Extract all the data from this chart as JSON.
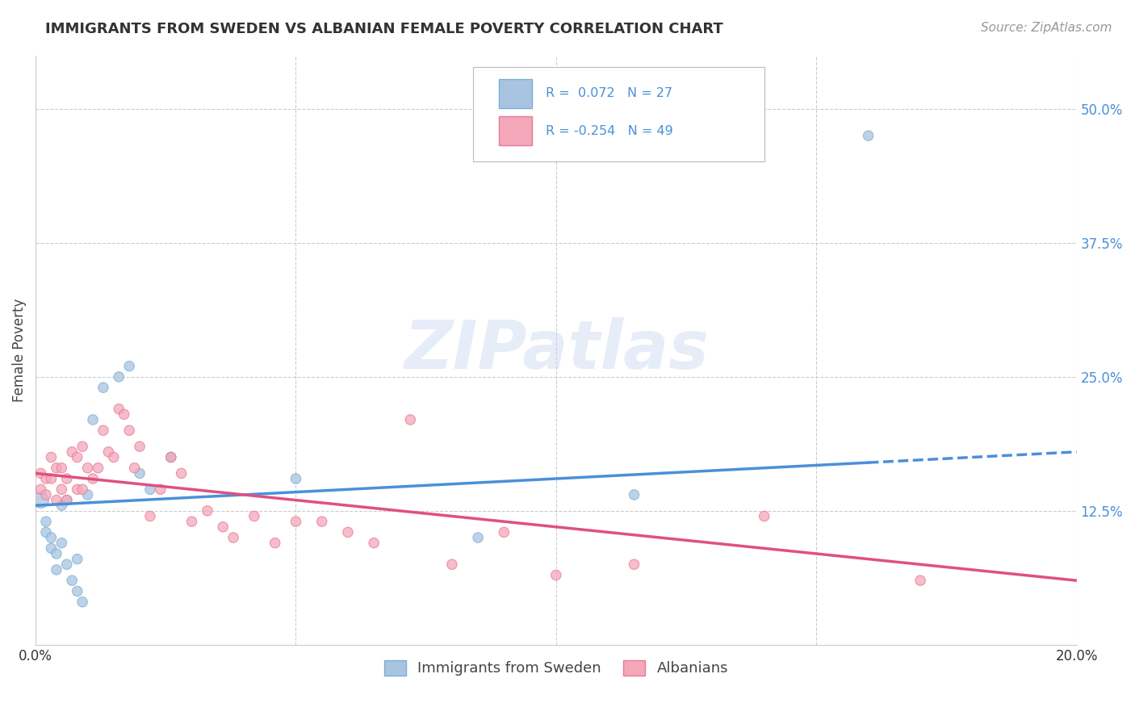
{
  "title": "IMMIGRANTS FROM SWEDEN VS ALBANIAN FEMALE POVERTY CORRELATION CHART",
  "source": "Source: ZipAtlas.com",
  "ylabel": "Female Poverty",
  "xlim": [
    0.0,
    0.2
  ],
  "ylim": [
    0.0,
    0.55
  ],
  "right_yticks": [
    0.0,
    0.125,
    0.25,
    0.375,
    0.5
  ],
  "right_yticklabels": [
    "",
    "12.5%",
    "25.0%",
    "37.5%",
    "50.0%"
  ],
  "blue_series": {
    "name": "Immigrants from Sweden",
    "color": "#a8c4e0",
    "edge_color": "#7aafd4",
    "R": 0.072,
    "N": 27,
    "x": [
      0.001,
      0.002,
      0.002,
      0.003,
      0.003,
      0.004,
      0.004,
      0.005,
      0.005,
      0.006,
      0.006,
      0.007,
      0.008,
      0.008,
      0.009,
      0.01,
      0.011,
      0.013,
      0.016,
      0.018,
      0.02,
      0.022,
      0.026,
      0.05,
      0.085,
      0.115,
      0.16
    ],
    "y": [
      0.135,
      0.115,
      0.105,
      0.1,
      0.09,
      0.085,
      0.07,
      0.13,
      0.095,
      0.135,
      0.075,
      0.06,
      0.05,
      0.08,
      0.04,
      0.14,
      0.21,
      0.24,
      0.25,
      0.26,
      0.16,
      0.145,
      0.175,
      0.155,
      0.1,
      0.14,
      0.475
    ],
    "sizes": [
      200,
      80,
      80,
      80,
      80,
      80,
      80,
      80,
      80,
      80,
      80,
      80,
      80,
      80,
      80,
      80,
      80,
      80,
      80,
      80,
      80,
      80,
      80,
      80,
      80,
      80,
      80
    ]
  },
  "pink_series": {
    "name": "Albanians",
    "color": "#f4a7b9",
    "edge_color": "#e8799a",
    "R": -0.254,
    "N": 49,
    "x": [
      0.001,
      0.001,
      0.002,
      0.002,
      0.003,
      0.003,
      0.004,
      0.004,
      0.005,
      0.005,
      0.006,
      0.006,
      0.007,
      0.008,
      0.008,
      0.009,
      0.009,
      0.01,
      0.011,
      0.012,
      0.013,
      0.014,
      0.015,
      0.016,
      0.017,
      0.018,
      0.019,
      0.02,
      0.022,
      0.024,
      0.026,
      0.028,
      0.03,
      0.033,
      0.036,
      0.038,
      0.042,
      0.046,
      0.05,
      0.055,
      0.06,
      0.065,
      0.072,
      0.08,
      0.09,
      0.1,
      0.115,
      0.14,
      0.17
    ],
    "y": [
      0.16,
      0.145,
      0.155,
      0.14,
      0.175,
      0.155,
      0.165,
      0.135,
      0.165,
      0.145,
      0.155,
      0.135,
      0.18,
      0.175,
      0.145,
      0.185,
      0.145,
      0.165,
      0.155,
      0.165,
      0.2,
      0.18,
      0.175,
      0.22,
      0.215,
      0.2,
      0.165,
      0.185,
      0.12,
      0.145,
      0.175,
      0.16,
      0.115,
      0.125,
      0.11,
      0.1,
      0.12,
      0.095,
      0.115,
      0.115,
      0.105,
      0.095,
      0.21,
      0.075,
      0.105,
      0.065,
      0.075,
      0.12,
      0.06
    ],
    "sizes": [
      80,
      80,
      80,
      80,
      80,
      80,
      80,
      80,
      80,
      80,
      80,
      80,
      80,
      80,
      80,
      80,
      80,
      80,
      80,
      80,
      80,
      80,
      80,
      80,
      80,
      80,
      80,
      80,
      80,
      80,
      80,
      80,
      80,
      80,
      80,
      80,
      80,
      80,
      80,
      80,
      80,
      80,
      80,
      80,
      80,
      80,
      80,
      80,
      80
    ]
  },
  "blue_line_color": "#4a90d9",
  "pink_line_color": "#e05080",
  "watermark_text": "ZIPatlas",
  "background_color": "#ffffff",
  "grid_color": "#cccccc"
}
